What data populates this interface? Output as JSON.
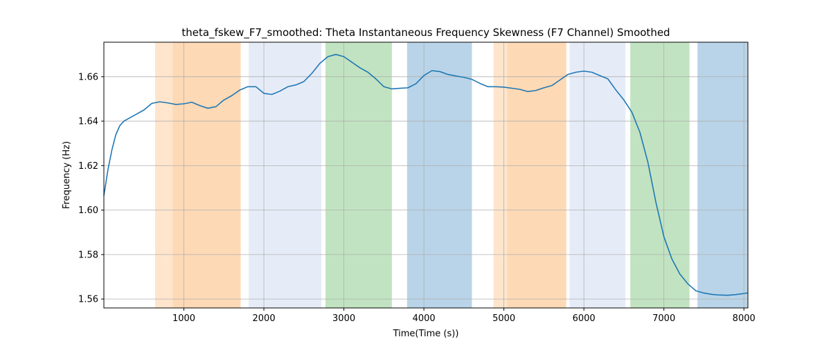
{
  "chart_data": {
    "type": "line",
    "title": "theta_fskew_F7_smoothed: Theta Instantaneous Frequency Skewness (F7 Channel) Smoothed",
    "xlabel": "Time(Time (s))",
    "ylabel": "Frequency (Hz)",
    "xlim": [
      0,
      8050
    ],
    "ylim": [
      1.556,
      1.6755
    ],
    "grid": true,
    "x_ticks": [
      1000,
      2000,
      3000,
      4000,
      5000,
      6000,
      7000,
      8000
    ],
    "y_ticks": [
      1.56,
      1.58,
      1.6,
      1.62,
      1.64,
      1.66
    ],
    "y_tick_labels": [
      "1.56",
      "1.58",
      "1.60",
      "1.62",
      "1.64",
      "1.66"
    ],
    "x_tick_labels": [
      "1000",
      "2000",
      "3000",
      "4000",
      "5000",
      "6000",
      "7000",
      "8000"
    ],
    "shaded_regions": [
      {
        "x0": 640,
        "x1": 860,
        "color": "#ffe5cc"
      },
      {
        "x0": 860,
        "x1": 1710,
        "color": "#fdd9b5"
      },
      {
        "x0": 1810,
        "x1": 2720,
        "color": "#e6ecf7"
      },
      {
        "x0": 2770,
        "x1": 3600,
        "color": "#c1e3c1"
      },
      {
        "x0": 3790,
        "x1": 4600,
        "color": "#b9d4e8"
      },
      {
        "x0": 4870,
        "x1": 5040,
        "color": "#ffe5cc"
      },
      {
        "x0": 5040,
        "x1": 5780,
        "color": "#fdd9b5"
      },
      {
        "x0": 5820,
        "x1": 6520,
        "color": "#e6ecf7"
      },
      {
        "x0": 6580,
        "x1": 7320,
        "color": "#c1e3c1"
      },
      {
        "x0": 7420,
        "x1": 8050,
        "color": "#b9d4e8"
      }
    ],
    "series": [
      {
        "color": "#1f77b4",
        "x": [
          0,
          50,
          100,
          150,
          200,
          250,
          300,
          400,
          500,
          600,
          700,
          800,
          900,
          1000,
          1100,
          1200,
          1300,
          1400,
          1500,
          1600,
          1700,
          1800,
          1900,
          2000,
          2100,
          2200,
          2300,
          2400,
          2500,
          2600,
          2700,
          2800,
          2900,
          3000,
          3100,
          3200,
          3300,
          3400,
          3500,
          3600,
          3700,
          3800,
          3900,
          4000,
          4100,
          4200,
          4300,
          4400,
          4500,
          4600,
          4700,
          4800,
          4900,
          5000,
          5100,
          5200,
          5300,
          5400,
          5500,
          5600,
          5700,
          5800,
          5900,
          6000,
          6100,
          6200,
          6300,
          6400,
          6500,
          6600,
          6700,
          6800,
          6900,
          7000,
          7100,
          7200,
          7300,
          7400,
          7500,
          7600,
          7700,
          7800,
          7900,
          8000,
          8050
        ],
        "y": [
          1.6065,
          1.618,
          1.627,
          1.634,
          1.638,
          1.64,
          1.641,
          1.643,
          1.645,
          1.648,
          1.6487,
          1.6482,
          1.6475,
          1.6478,
          1.6485,
          1.647,
          1.6458,
          1.6465,
          1.6495,
          1.6515,
          1.654,
          1.6555,
          1.6555,
          1.6525,
          1.652,
          1.6535,
          1.6555,
          1.6563,
          1.6578,
          1.6615,
          1.666,
          1.669,
          1.67,
          1.669,
          1.6665,
          1.664,
          1.662,
          1.659,
          1.6555,
          1.6545,
          1.6548,
          1.655,
          1.6568,
          1.6605,
          1.6627,
          1.6623,
          1.661,
          1.6603,
          1.6597,
          1.6588,
          1.657,
          1.6555,
          1.6555,
          1.6553,
          1.6548,
          1.6543,
          1.6533,
          1.6538,
          1.655,
          1.656,
          1.6585,
          1.661,
          1.662,
          1.6625,
          1.662,
          1.6605,
          1.659,
          1.654,
          1.6495,
          1.644,
          1.635,
          1.6215,
          1.6035,
          1.588,
          1.578,
          1.5712,
          1.5668,
          1.5637,
          1.5627,
          1.5621,
          1.5618,
          1.5617,
          1.562,
          1.5625,
          1.5628
        ]
      }
    ]
  }
}
